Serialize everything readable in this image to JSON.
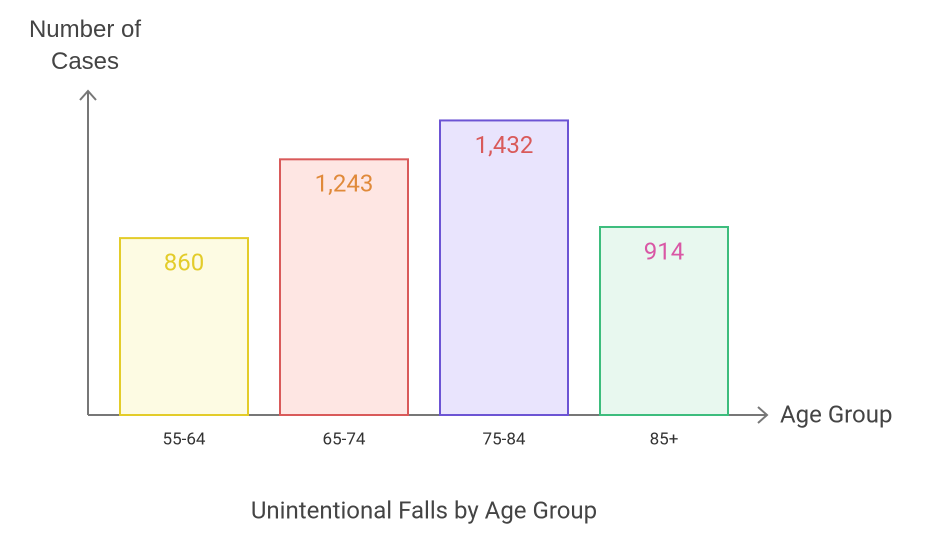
{
  "chart_data": {
    "type": "bar",
    "title": "Unintentional Falls by Age Group",
    "x_label": "Age Group",
    "y_label": "Number of Cases",
    "categories": [
      "55-64",
      "65-74",
      "75-84",
      "85+"
    ],
    "values": [
      860,
      1243,
      1432,
      914
    ],
    "value_labels": [
      "860",
      "1,243",
      "1,432",
      "914"
    ],
    "fill_colors": [
      "#fdfbe3",
      "#fee6e3",
      "#e9e4fd",
      "#e8f8ef"
    ],
    "stroke_colors": [
      "#e3cc2a",
      "#d95a5a",
      "#6c54d4",
      "#3dbd7d"
    ],
    "label_colors": [
      "#e3cc2a",
      "#e08a3a",
      "#d95a5a",
      "#d957a5"
    ],
    "ylim": [
      0,
      1580
    ]
  }
}
